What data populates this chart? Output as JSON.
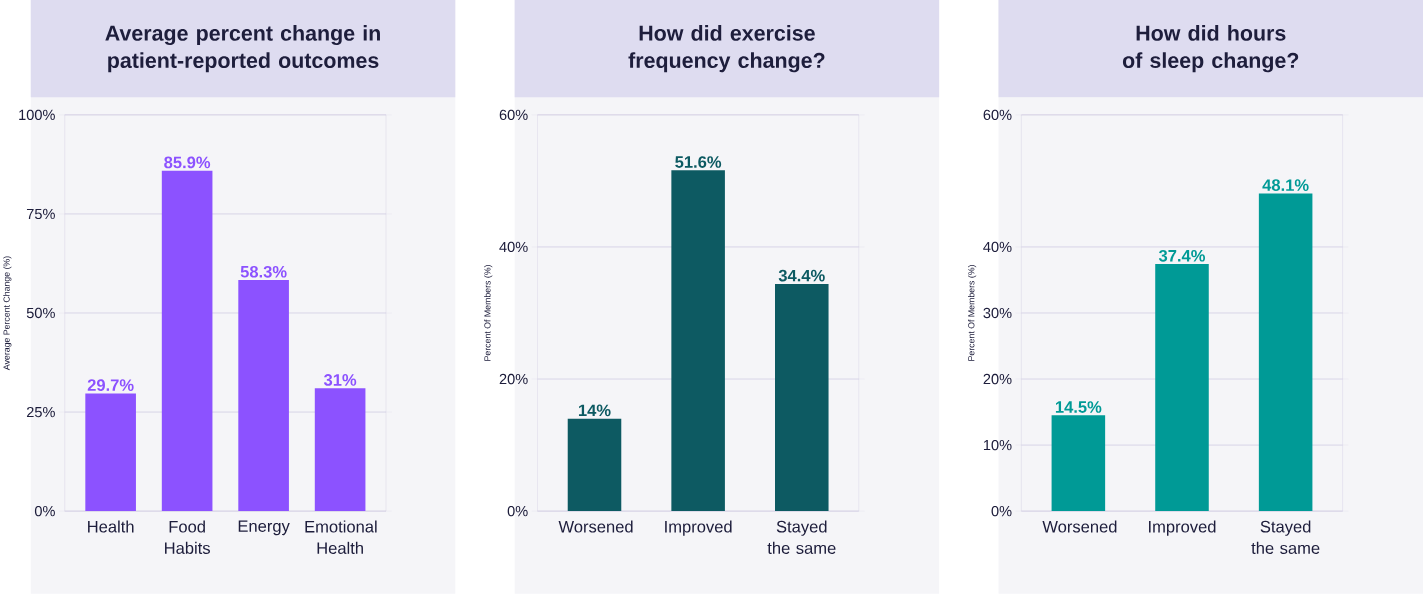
{
  "chart_data": [
    {
      "type": "bar",
      "title": "Average percent change in patient-reported outcomes",
      "ylabel": "Average Percent Change (%)",
      "categories": [
        "Health",
        "Food Habits",
        "Energy",
        "Emotional Health"
      ],
      "values": [
        29.7,
        85.9,
        58.3,
        31
      ],
      "value_labels": [
        "29.7%",
        "85.9%",
        "58.3%",
        "31%"
      ],
      "color": "#8c52ff",
      "ylim": [
        0,
        100
      ],
      "yticks": [
        {
          "value": 0,
          "label": "0%"
        },
        {
          "value": 25,
          "label": "25%"
        },
        {
          "value": 50,
          "label": "50%"
        },
        {
          "value": 75,
          "label": "75%"
        },
        {
          "value": 100,
          "label": "100%"
        }
      ],
      "grid": "y"
    },
    {
      "type": "bar",
      "title": "How did exercise frequency change?",
      "ylabel": "Percent Of Members (%)",
      "categories": [
        "Worsened",
        "Improved",
        "Stayed the same"
      ],
      "values": [
        14,
        51.6,
        34.4
      ],
      "value_labels": [
        "14%",
        "51.6%",
        "34.4%"
      ],
      "color": "#0d5a62",
      "ylim": [
        0,
        60
      ],
      "yticks": [
        {
          "value": 0,
          "label": "0%"
        },
        {
          "value": 20,
          "label": "20%"
        },
        {
          "value": 40,
          "label": "40%"
        },
        {
          "value": 60,
          "label": "60%"
        }
      ],
      "grid": "y"
    },
    {
      "type": "bar",
      "title": "How did hours of sleep change?",
      "ylabel": "Percent Of Members (%)",
      "categories": [
        "Worsened",
        "Improved",
        "Stayed the same"
      ],
      "values": [
        14.5,
        37.4,
        48.1
      ],
      "value_labels": [
        "14.5%",
        "37.4%",
        "48.1%"
      ],
      "color": "#009a96",
      "ylim": [
        0,
        60
      ],
      "yticks": [
        {
          "value": 0,
          "label": "0%"
        },
        {
          "value": 10,
          "label": "10%"
        },
        {
          "value": 20,
          "label": "20%"
        },
        {
          "value": 30,
          "label": "30%"
        },
        {
          "value": 40,
          "label": "40%"
        },
        {
          "value": 60,
          "label": "60%"
        }
      ],
      "grid": "y"
    }
  ]
}
